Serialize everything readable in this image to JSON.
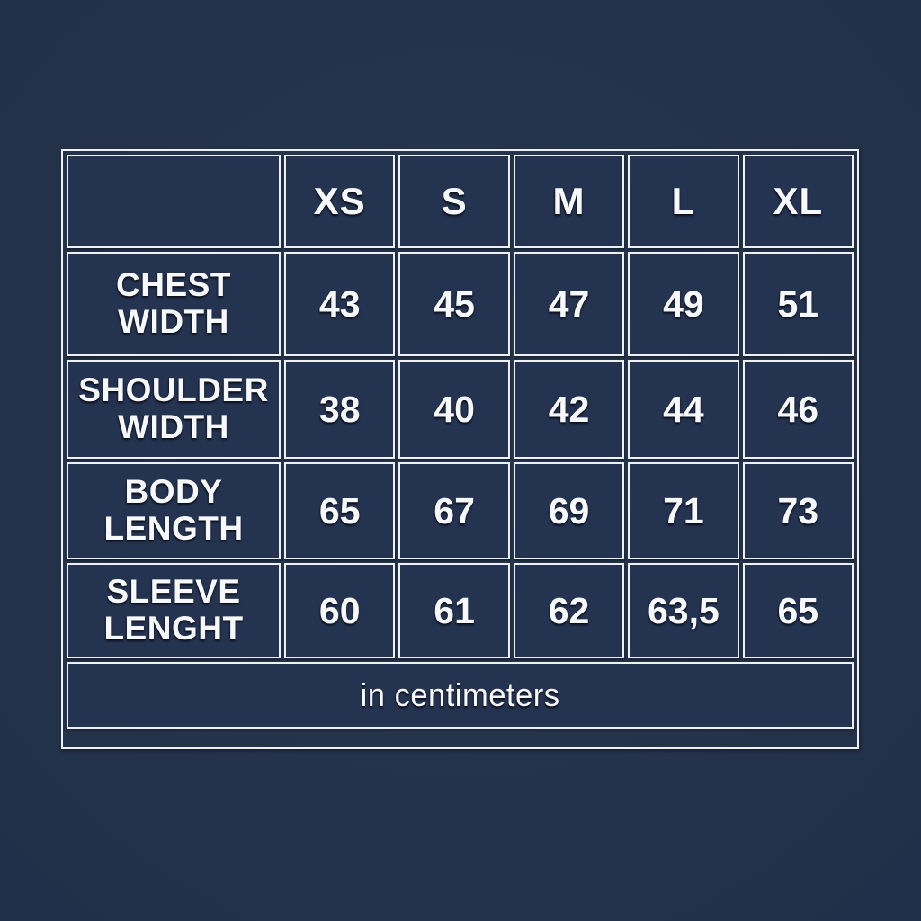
{
  "colors": {
    "background": "#243450",
    "cell_background": "#243350",
    "border": "#eef0f3",
    "text": "#f7f8fa"
  },
  "chart_data": {
    "type": "table",
    "title": "",
    "columns": [
      "",
      "XS",
      "S",
      "M",
      "L",
      "XL"
    ],
    "rows": [
      {
        "label": "CHEST WIDTH",
        "values": [
          "43",
          "45",
          "47",
          "49",
          "51"
        ]
      },
      {
        "label": "SHOULDER WIDTH",
        "values": [
          "38",
          "40",
          "42",
          "44",
          "46"
        ]
      },
      {
        "label": "BODY LENGTH",
        "values": [
          "65",
          "67",
          "69",
          "71",
          "73"
        ]
      },
      {
        "label": "SLEEVE LENGHT",
        "values": [
          "60",
          "61",
          "62",
          "63,5",
          "65"
        ]
      }
    ],
    "footer": "in centimeters",
    "layout_hints": {
      "grid": "double-line white borders",
      "label_column": "left",
      "footer_spans_all_columns": true
    }
  }
}
